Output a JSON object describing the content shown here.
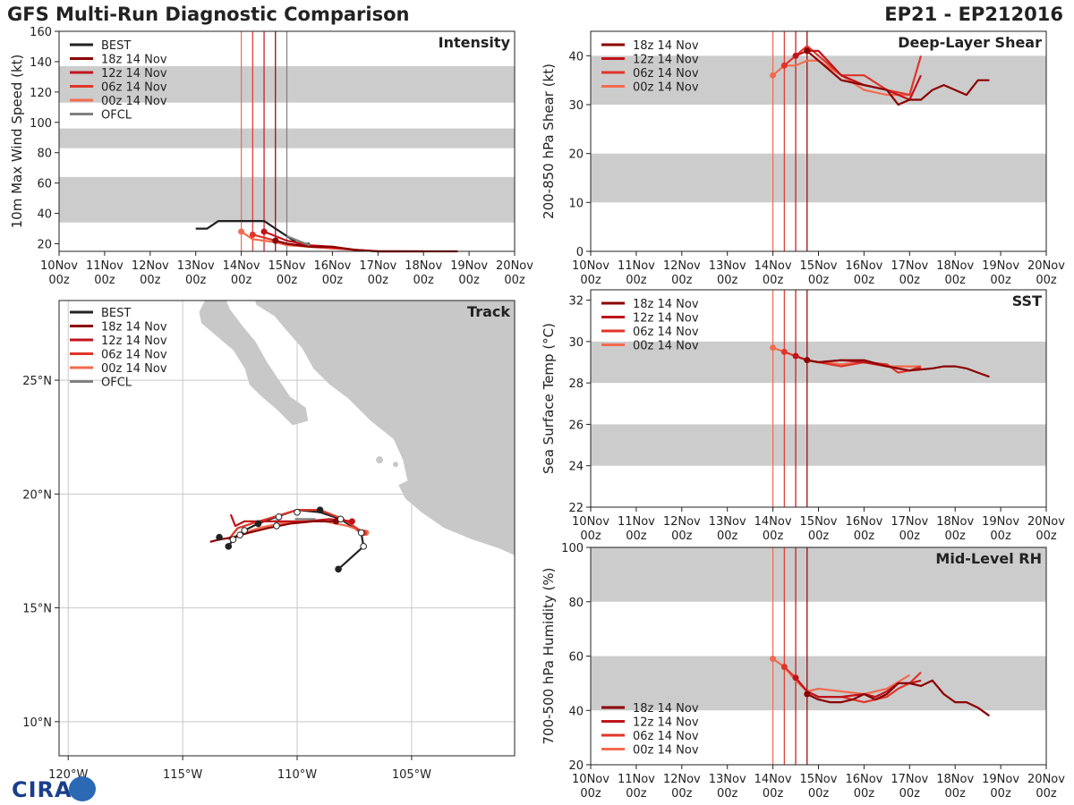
{
  "header": {
    "title": "GFS Multi-Run Diagnostic Comparison",
    "storm": "EP21 - EP212016"
  },
  "logo": {
    "text": "CIRA"
  },
  "colors": {
    "BEST": "#222222",
    "18z": "#8b0000",
    "12z": "#c0141c",
    "06z": "#e0352a",
    "00z": "#f26b4f",
    "OFCL": "#808080",
    "band": "#cccccc"
  },
  "time_axis": {
    "days": [
      "10Nov",
      "11Nov",
      "12Nov",
      "13Nov",
      "14Nov",
      "15Nov",
      "16Nov",
      "17Nov",
      "18Nov",
      "19Nov",
      "20Nov"
    ],
    "hour": "00z"
  },
  "chart_data": [
    {
      "id": "intensity",
      "type": "line",
      "title": "Intensity",
      "ylabel": "10m Max Wind Speed (kt)",
      "xlabel": "",
      "ylim": [
        15,
        160
      ],
      "yticks": [
        20,
        40,
        60,
        80,
        100,
        120,
        140,
        160
      ],
      "bands": [
        [
          34,
          64
        ],
        [
          83,
          96
        ],
        [
          113,
          137
        ]
      ],
      "init_lines": [
        {
          "name": "00z",
          "t": 4.0
        },
        {
          "name": "06z",
          "t": 4.25
        },
        {
          "name": "12z",
          "t": 4.5
        },
        {
          "name": "18z",
          "t": 4.75
        },
        {
          "name": "OFCL",
          "t": 5.0
        }
      ],
      "legend": [
        "BEST",
        "18z 14 Nov",
        "12z 14 Nov",
        "06z 14 Nov",
        "00z 14 Nov",
        "OFCL"
      ],
      "series": [
        {
          "name": "BEST",
          "key": "BEST",
          "t": [
            3.0,
            3.25,
            3.5,
            3.75,
            4.0,
            4.25,
            4.5,
            4.75,
            5.0,
            5.25,
            5.5
          ],
          "v": [
            30,
            30,
            35,
            35,
            35,
            35,
            35,
            30,
            25,
            20,
            20
          ]
        },
        {
          "name": "00z 14 Nov",
          "key": "00z",
          "t": [
            4.0,
            4.25,
            4.5,
            4.75,
            5.0,
            5.5,
            6.0,
            6.5,
            7.0
          ],
          "v": [
            28,
            23,
            22,
            21,
            19,
            18,
            17,
            16,
            15
          ]
        },
        {
          "name": "06z 14 Nov",
          "key": "06z",
          "t": [
            4.25,
            4.5,
            4.75,
            5.0,
            5.5,
            6.0,
            6.5,
            7.0,
            7.5
          ],
          "v": [
            26,
            24,
            22,
            20,
            18,
            17,
            16,
            15,
            15
          ]
        },
        {
          "name": "12z 14 Nov",
          "key": "12z",
          "t": [
            4.5,
            4.75,
            5.0,
            5.5,
            6.0,
            6.5,
            7.0,
            7.5,
            8.0
          ],
          "v": [
            28,
            25,
            22,
            19,
            18,
            16,
            15,
            15,
            15
          ]
        },
        {
          "name": "18z 14 Nov",
          "key": "18z",
          "t": [
            4.75,
            5.0,
            5.5,
            6.0,
            6.5,
            7.0,
            7.5,
            8.0,
            8.5,
            8.75
          ],
          "v": [
            22,
            20,
            18,
            18,
            16,
            15,
            15,
            15,
            15,
            15
          ]
        },
        {
          "name": "OFCL",
          "key": "OFCL",
          "t": [
            5.0,
            5.25,
            5.5
          ],
          "v": [
            25,
            22,
            19
          ]
        }
      ]
    },
    {
      "id": "shear",
      "type": "line",
      "title": "Deep-Layer Shear",
      "ylabel": "200-850 hPa Shear (kt)",
      "xlabel": "",
      "ylim": [
        0,
        45
      ],
      "yticks": [
        0,
        10,
        20,
        30,
        40
      ],
      "bands": [
        [
          10,
          20
        ],
        [
          30,
          40
        ]
      ],
      "init_lines": [
        {
          "name": "00z",
          "t": 4.0
        },
        {
          "name": "06z",
          "t": 4.25
        },
        {
          "name": "12z",
          "t": 4.5
        },
        {
          "name": "18z",
          "t": 4.75
        }
      ],
      "legend": [
        "18z 14 Nov",
        "12z 14 Nov",
        "06z 14 Nov",
        "00z 14 Nov"
      ],
      "series": [
        {
          "name": "00z 14 Nov",
          "key": "00z",
          "t": [
            4.0,
            4.25,
            4.5,
            4.75,
            5.0,
            5.5,
            6.0,
            6.5,
            7.0
          ],
          "v": [
            36,
            38,
            38,
            39,
            39,
            36,
            33,
            32,
            32
          ]
        },
        {
          "name": "06z 14 Nov",
          "key": "06z",
          "t": [
            4.25,
            4.5,
            4.75,
            5.0,
            5.5,
            6.0,
            6.5,
            7.0,
            7.25
          ],
          "v": [
            38,
            40,
            42,
            40,
            36,
            36,
            33,
            32,
            40
          ]
        },
        {
          "name": "12z 14 Nov",
          "key": "12z",
          "t": [
            4.5,
            4.75,
            5.0,
            5.5,
            6.0,
            6.5,
            7.0,
            7.25
          ],
          "v": [
            40,
            41,
            41,
            36,
            34,
            33,
            31,
            36
          ]
        },
        {
          "name": "18z 14 Nov",
          "key": "18z",
          "t": [
            4.75,
            5.0,
            5.5,
            6.0,
            6.5,
            6.75,
            7.0,
            7.25,
            7.5,
            7.75,
            8.0,
            8.25,
            8.5,
            8.75
          ],
          "v": [
            41,
            39,
            35,
            34,
            33,
            30,
            31,
            31,
            33,
            34,
            33,
            32,
            35,
            35
          ]
        }
      ]
    },
    {
      "id": "sst",
      "type": "line",
      "title": "SST",
      "ylabel": "Sea Surface Temp (°C)",
      "xlabel": "",
      "ylim": [
        22,
        32.5
      ],
      "yticks": [
        22,
        24,
        26,
        28,
        30,
        32
      ],
      "bands": [
        [
          24,
          26
        ],
        [
          28,
          30
        ]
      ],
      "init_lines": [
        {
          "name": "00z",
          "t": 4.0
        },
        {
          "name": "06z",
          "t": 4.25
        },
        {
          "name": "12z",
          "t": 4.5
        },
        {
          "name": "18z",
          "t": 4.75
        }
      ],
      "legend": [
        "18z 14 Nov",
        "12z 14 Nov",
        "06z 14 Nov",
        "00z 14 Nov"
      ],
      "series": [
        {
          "name": "00z 14 Nov",
          "key": "00z",
          "t": [
            4.0,
            4.25,
            4.5,
            4.75,
            5.0,
            5.5,
            6.0,
            6.5,
            7.0,
            7.25
          ],
          "v": [
            29.7,
            29.5,
            29.3,
            29.1,
            29.0,
            28.9,
            29.0,
            28.8,
            28.8,
            28.8
          ]
        },
        {
          "name": "06z 14 Nov",
          "key": "06z",
          "t": [
            4.25,
            4.5,
            4.75,
            5.0,
            5.5,
            6.0,
            6.5,
            6.75,
            7.0,
            7.25
          ],
          "v": [
            29.5,
            29.3,
            29.1,
            29.0,
            28.8,
            29.0,
            28.9,
            28.5,
            28.6,
            28.8
          ]
        },
        {
          "name": "12z 14 Nov",
          "key": "12z",
          "t": [
            4.5,
            4.75,
            5.0,
            5.5,
            6.0,
            6.5,
            7.0,
            7.25
          ],
          "v": [
            29.3,
            29.1,
            29.0,
            29.1,
            29.0,
            28.8,
            28.6,
            28.7
          ]
        },
        {
          "name": "18z 14 Nov",
          "key": "18z",
          "t": [
            4.75,
            5.0,
            5.5,
            6.0,
            6.5,
            7.0,
            7.5,
            7.75,
            8.0,
            8.25,
            8.5,
            8.75
          ],
          "v": [
            29.1,
            29.0,
            29.1,
            29.1,
            28.8,
            28.6,
            28.7,
            28.8,
            28.8,
            28.7,
            28.5,
            28.3
          ]
        }
      ]
    },
    {
      "id": "rh",
      "type": "line",
      "title": "Mid-Level RH",
      "ylabel": "700-500 hPa Humidity (%)",
      "xlabel": "",
      "ylim": [
        20,
        100
      ],
      "yticks": [
        20,
        40,
        60,
        80,
        100
      ],
      "bands": [
        [
          40,
          60
        ],
        [
          80,
          100
        ]
      ],
      "init_lines": [
        {
          "name": "00z",
          "t": 4.0
        },
        {
          "name": "06z",
          "t": 4.25
        },
        {
          "name": "12z",
          "t": 4.5
        },
        {
          "name": "18z",
          "t": 4.75
        }
      ],
      "legend": [
        "18z 14 Nov",
        "12z 14 Nov",
        "06z 14 Nov",
        "00z 14 Nov"
      ],
      "series": [
        {
          "name": "00z 14 Nov",
          "key": "00z",
          "t": [
            4.0,
            4.25,
            4.5,
            4.75,
            5.0,
            5.5,
            6.0,
            6.5,
            7.0
          ],
          "v": [
            59,
            56,
            51,
            47,
            48,
            47,
            46,
            48,
            53
          ]
        },
        {
          "name": "06z 14 Nov",
          "key": "06z",
          "t": [
            4.25,
            4.5,
            4.75,
            5.0,
            5.5,
            6.0,
            6.5,
            6.75,
            7.0,
            7.25
          ],
          "v": [
            56,
            52,
            47,
            45,
            45,
            43,
            45,
            48,
            50,
            54
          ]
        },
        {
          "name": "12z 14 Nov",
          "key": "12z",
          "t": [
            4.5,
            4.75,
            5.0,
            5.5,
            6.0,
            6.25,
            6.5,
            6.75,
            7.0,
            7.25
          ],
          "v": [
            52,
            47,
            45,
            45,
            46,
            45,
            47,
            50,
            50,
            51
          ]
        },
        {
          "name": "18z 14 Nov",
          "key": "18z",
          "t": [
            4.75,
            5.0,
            5.25,
            5.5,
            5.75,
            6.0,
            6.25,
            6.5,
            6.75,
            7.0,
            7.25,
            7.5,
            7.75,
            8.0,
            8.25,
            8.5,
            8.75
          ],
          "v": [
            46,
            44,
            43,
            43,
            44,
            46,
            44,
            46,
            50,
            50,
            49,
            51,
            46,
            43,
            43,
            41,
            38
          ]
        }
      ]
    },
    {
      "id": "track",
      "type": "scatter",
      "title": "Track",
      "xlabel": "",
      "ylabel": "",
      "xlim": [
        -120.4,
        -100.5
      ],
      "ylim": [
        8.5,
        28.5
      ],
      "xticks": [
        -120,
        -115,
        -110,
        -105
      ],
      "xtick_labels": [
        "120°W",
        "115°W",
        "110°W",
        "105°W"
      ],
      "yticks": [
        10,
        15,
        20,
        25
      ],
      "ytick_labels": [
        "10°N",
        "15°N",
        "20°N",
        "25°N"
      ],
      "legend": [
        "BEST",
        "18z 14 Nov",
        "12z 14 Nov",
        "06z 14 Nov",
        "00z 14 Nov",
        "OFCL"
      ],
      "series": [
        {
          "name": "BEST",
          "key": "BEST",
          "lon": [
            -108.2,
            -107.1,
            -107.2,
            -108.1,
            -109.0,
            -110.0,
            -110.9,
            -111.7,
            -112.3,
            -112.8,
            -113.0
          ],
          "lat": [
            16.7,
            17.7,
            18.3,
            18.9,
            19.2,
            19.3,
            19.0,
            18.7,
            18.4,
            18.0,
            17.7
          ]
        },
        {
          "name": "00z 14 Nov",
          "key": "00z",
          "lon": [
            -107.0,
            -107.8,
            -108.8,
            -109.8,
            -110.8,
            -111.7,
            -112.3,
            -112.8
          ],
          "lat": [
            18.3,
            18.6,
            18.8,
            18.8,
            18.7,
            18.5,
            18.3,
            18.1
          ]
        },
        {
          "name": "06z 14 Nov",
          "key": "06z",
          "lon": [
            -107.1,
            -108.0,
            -109.0,
            -110.0,
            -111.0,
            -112.0,
            -112.6,
            -113.0
          ],
          "lat": [
            18.3,
            18.9,
            19.3,
            19.3,
            19.0,
            18.7,
            18.5,
            18.0
          ]
        },
        {
          "name": "12z 14 Nov",
          "key": "12z",
          "lon": [
            -107.6,
            -108.6,
            -109.6,
            -110.6,
            -111.6,
            -112.3,
            -112.7,
            -112.9
          ],
          "lat": [
            18.8,
            18.9,
            18.8,
            18.8,
            18.8,
            18.8,
            18.6,
            19.1
          ]
        },
        {
          "name": "18z 14 Nov",
          "key": "18z",
          "lon": [
            -108.3,
            -109.3,
            -110.3,
            -111.3,
            -112.1,
            -112.8,
            -113.4,
            -113.8
          ],
          "lat": [
            18.8,
            18.8,
            18.7,
            18.5,
            18.3,
            18.1,
            18.0,
            17.9
          ]
        },
        {
          "name": "OFCL",
          "key": "OFCL",
          "lon": [
            -109.2,
            -109.6,
            -110.1
          ],
          "lat": [
            18.9,
            18.9,
            18.9
          ]
        }
      ],
      "best_points": [
        {
          "lon": -108.2,
          "lat": 16.7,
          "filled": true
        },
        {
          "lon": -107.1,
          "lat": 17.7,
          "filled": false
        },
        {
          "lon": -107.2,
          "lat": 18.3,
          "filled": false
        },
        {
          "lon": -108.1,
          "lat": 18.9,
          "filled": false
        },
        {
          "lon": -109.0,
          "lat": 19.3,
          "filled": true
        },
        {
          "lon": -110.0,
          "lat": 19.2,
          "filled": false
        },
        {
          "lon": -110.8,
          "lat": 19.0,
          "filled": false
        },
        {
          "lon": -110.9,
          "lat": 18.6,
          "filled": false
        },
        {
          "lon": -111.7,
          "lat": 18.7,
          "filled": true
        },
        {
          "lon": -112.3,
          "lat": 18.4,
          "filled": false
        },
        {
          "lon": -112.8,
          "lat": 18.0,
          "filled": false
        },
        {
          "lon": -113.0,
          "lat": 17.7,
          "filled": true
        },
        {
          "lon": -113.4,
          "lat": 18.1,
          "filled": true
        },
        {
          "lon": -112.5,
          "lat": 18.2,
          "filled": false
        }
      ]
    }
  ]
}
